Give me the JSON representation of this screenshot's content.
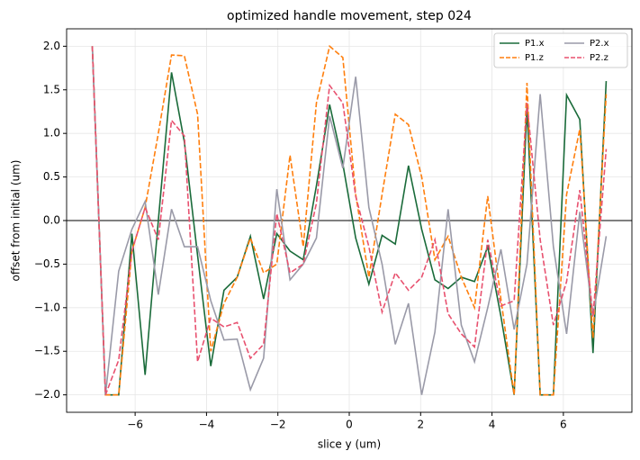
{
  "chart_data": {
    "type": "line",
    "title": "optimized handle movement, step 024",
    "xlabel": "slice y (um)",
    "ylabel": "offset from initial (um)",
    "x": [
      -7.2,
      -6.83,
      -6.46,
      -6.09,
      -5.72,
      -5.35,
      -4.98,
      -4.62,
      -4.25,
      -3.88,
      -3.51,
      -3.14,
      -2.77,
      -2.4,
      -2.03,
      -1.66,
      -1.29,
      -0.92,
      -0.55,
      -0.18,
      0.18,
      0.55,
      0.92,
      1.29,
      1.66,
      2.03,
      2.4,
      2.77,
      3.14,
      3.51,
      3.88,
      4.25,
      4.62,
      4.98,
      5.35,
      5.72,
      6.09,
      6.46,
      6.83,
      7.2
    ],
    "series": [
      {
        "name": "P1.x",
        "color": "#1a6b3a",
        "linestyle": "solid",
        "values": [
          2.0,
          -2.0,
          -2.0,
          -0.15,
          -1.77,
          0.0,
          1.7,
          0.9,
          -0.4,
          -1.67,
          -0.8,
          -0.65,
          -0.18,
          -0.9,
          -0.15,
          -0.35,
          -0.45,
          0.4,
          1.33,
          0.65,
          -0.2,
          -0.73,
          -0.17,
          -0.27,
          0.63,
          -0.1,
          -0.68,
          -0.78,
          -0.65,
          -0.7,
          -0.3,
          -1.1,
          -2.0,
          1.3,
          -2.0,
          -2.0,
          1.44,
          1.16,
          -1.52,
          1.6
        ]
      },
      {
        "name": "P1.z",
        "color": "#ff7f0e",
        "linestyle": "dashed",
        "values": [
          2.0,
          -2.0,
          -2.0,
          -0.35,
          0.15,
          1.0,
          1.9,
          1.89,
          1.22,
          -1.5,
          -0.95,
          -0.65,
          -0.2,
          -0.6,
          -0.5,
          0.75,
          -0.3,
          1.35,
          2.0,
          1.87,
          0.3,
          -0.65,
          0.3,
          1.22,
          1.1,
          0.5,
          -0.45,
          -0.18,
          -0.65,
          -1.0,
          0.28,
          -0.9,
          -2.0,
          1.58,
          -2.0,
          -2.0,
          0.3,
          1.05,
          -1.35,
          1.45
        ]
      },
      {
        "name": "P2.x",
        "color": "#9a9aa8",
        "linestyle": "solid",
        "values": [
          2.0,
          -2.0,
          -0.58,
          -0.1,
          0.22,
          -0.85,
          0.13,
          -0.3,
          -0.3,
          -0.92,
          -1.37,
          -1.36,
          -1.94,
          -1.58,
          0.36,
          -0.68,
          -0.5,
          -0.2,
          1.2,
          0.6,
          1.65,
          0.15,
          -0.5,
          -1.42,
          -0.95,
          -2.0,
          -1.28,
          0.13,
          -1.2,
          -1.62,
          -1.0,
          -0.33,
          -1.25,
          -0.5,
          1.45,
          -0.3,
          -1.3,
          0.1,
          -1.1,
          -0.18
        ]
      },
      {
        "name": "P2.z",
        "color": "#e8516f",
        "linestyle": "dashed",
        "values": [
          2.0,
          -2.0,
          -1.6,
          -0.35,
          0.15,
          -0.22,
          1.15,
          0.97,
          -1.62,
          -1.12,
          -1.22,
          -1.17,
          -1.58,
          -1.42,
          0.08,
          -0.6,
          -0.5,
          0.2,
          1.55,
          1.35,
          0.28,
          -0.3,
          -1.05,
          -0.6,
          -0.8,
          -0.65,
          -0.22,
          -1.07,
          -1.3,
          -1.45,
          -0.22,
          -0.98,
          -0.92,
          1.35,
          -0.22,
          -1.2,
          -0.7,
          0.35,
          -1.1,
          0.82
        ]
      }
    ],
    "hline": 0,
    "xlim": [
      -7.92,
      7.92
    ],
    "ylim": [
      -2.2,
      2.2
    ],
    "xticks": [
      {
        "value": -6,
        "label": "−6"
      },
      {
        "value": -4,
        "label": "−4"
      },
      {
        "value": -2,
        "label": "−2"
      },
      0,
      2,
      4,
      6
    ],
    "yticks": [
      {
        "value": -2,
        "label": "−2.0"
      },
      {
        "value": -1.5,
        "label": "−1.5"
      },
      {
        "value": -1,
        "label": "−1.0"
      },
      {
        "value": -0.5,
        "label": "−0.5"
      },
      {
        "value": 0,
        "label": "0.0"
      },
      {
        "value": 0.5,
        "label": "0.5"
      },
      {
        "value": 1,
        "label": "1.0"
      },
      {
        "value": 1.5,
        "label": "1.5"
      },
      {
        "value": 2,
        "label": "2.0"
      }
    ],
    "grid": true,
    "legend": "upper right",
    "legend_columns": 2
  }
}
